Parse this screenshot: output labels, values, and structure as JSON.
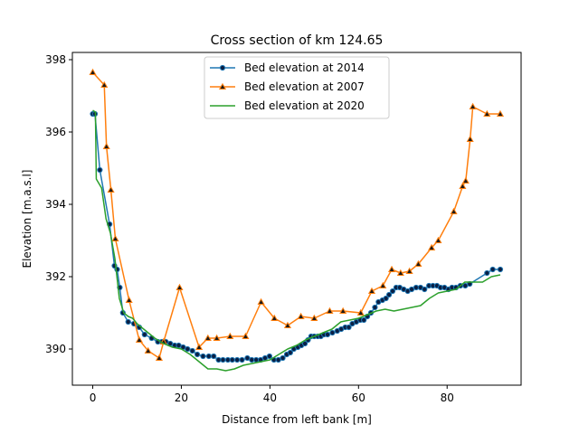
{
  "chart_data": {
    "type": "line",
    "title": "Cross section of km 124.65",
    "xlabel": "Distance from left bank [m]",
    "ylabel": "Elevation [m.a.s.l]",
    "xlim": [
      -4.6,
      96.7
    ],
    "ylim": [
      389.0,
      398.2
    ],
    "xticks": [
      0,
      20,
      40,
      60,
      80
    ],
    "yticks": [
      390,
      392,
      394,
      396,
      398
    ],
    "legend_position": "upper center",
    "grid": false,
    "series": [
      {
        "name": "Bed elevation at 2014",
        "color": "#1f77b4",
        "marker": "circle",
        "marker_face": "#0a1f44",
        "x": [
          0.0,
          0.5,
          1.6,
          3.8,
          4.9,
          5.5,
          6.1,
          6.8,
          8.0,
          9.3,
          10.5,
          11.7,
          13.3,
          14.7,
          15.6,
          16.5,
          17.5,
          18.5,
          19.4,
          20.4,
          21.4,
          22.5,
          23.6,
          24.9,
          26.2,
          27.3,
          28.4,
          29.4,
          30.5,
          31.5,
          32.6,
          33.7,
          34.9,
          35.9,
          36.9,
          37.9,
          38.9,
          39.9,
          40.9,
          41.9,
          42.9,
          43.8,
          44.6,
          45.4,
          46.3,
          47.1,
          47.9,
          48.6,
          49.3,
          50.0,
          50.8,
          51.5,
          52.2,
          53.0,
          54.1,
          55.2,
          56.1,
          57.0,
          57.8,
          58.6,
          59.5,
          60.4,
          61.2,
          62.0,
          62.8,
          63.7,
          64.5,
          65.4,
          66.2,
          66.9,
          67.7,
          68.5,
          69.3,
          70.2,
          71.1,
          72.0,
          73.0,
          74.0,
          74.9,
          75.9,
          76.8,
          77.7,
          78.5,
          79.4,
          80.3,
          81.1,
          82.0,
          83.0,
          84.1,
          85.1,
          89.0,
          90.3,
          92.0
        ],
        "y": [
          396.5,
          396.5,
          394.95,
          393.45,
          392.3,
          392.2,
          391.7,
          391.0,
          390.75,
          390.7,
          390.6,
          390.4,
          390.3,
          390.2,
          390.2,
          390.2,
          390.15,
          390.1,
          390.1,
          390.05,
          390.0,
          389.95,
          389.85,
          389.8,
          389.8,
          389.8,
          389.7,
          389.7,
          389.7,
          389.7,
          389.7,
          389.7,
          389.75,
          389.7,
          389.7,
          389.7,
          389.75,
          389.8,
          389.7,
          389.7,
          389.75,
          389.85,
          389.9,
          390.0,
          390.05,
          390.1,
          390.15,
          390.25,
          390.35,
          390.35,
          390.35,
          390.35,
          390.4,
          390.4,
          390.45,
          390.5,
          390.55,
          390.6,
          390.6,
          390.7,
          390.75,
          390.8,
          390.8,
          390.9,
          391.0,
          391.15,
          391.3,
          391.35,
          391.4,
          391.5,
          391.6,
          391.7,
          391.7,
          391.65,
          391.6,
          391.65,
          391.7,
          391.7,
          391.65,
          391.75,
          391.75,
          391.75,
          391.7,
          391.7,
          391.65,
          391.7,
          391.7,
          391.75,
          391.75,
          391.8,
          392.1,
          392.2,
          392.2
        ]
      },
      {
        "name": "Bed elevation at 2007",
        "color": "#ff7f0e",
        "marker": "triangle",
        "marker_face": "#1a1a1a",
        "x": [
          0.0,
          2.6,
          3.1,
          4.1,
          5.1,
          8.2,
          10.5,
          12.5,
          15.0,
          16.0,
          19.6,
          24.0,
          26.0,
          28.0,
          31.0,
          34.5,
          38.0,
          41.0,
          44.0,
          47.0,
          50.0,
          53.5,
          56.5,
          60.5,
          63.0,
          65.5,
          67.5,
          69.5,
          71.5,
          73.5,
          76.5,
          78.0,
          81.5,
          83.5,
          84.2,
          85.2,
          85.8,
          89.0,
          92.0
        ],
        "y": [
          397.65,
          397.3,
          395.6,
          394.4,
          393.05,
          391.35,
          390.25,
          389.95,
          389.75,
          390.2,
          391.7,
          390.05,
          390.3,
          390.3,
          390.35,
          390.35,
          391.3,
          390.85,
          390.65,
          390.9,
          390.85,
          391.05,
          391.05,
          391.0,
          391.6,
          391.75,
          392.2,
          392.1,
          392.15,
          392.35,
          392.8,
          393.0,
          393.8,
          394.5,
          394.65,
          395.8,
          396.7,
          396.5,
          396.5
        ]
      },
      {
        "name": "Bed elevation at 2020",
        "color": "#2ca02c",
        "marker": "none",
        "x": [
          0.0,
          0.6,
          0.8,
          2.0,
          3.0,
          4.0,
          5.0,
          6.0,
          7.0,
          8.0,
          9.0,
          10.0,
          11.0,
          12.0,
          13.0,
          14.0,
          16.0,
          18.0,
          20.0,
          22.0,
          24.0,
          26.0,
          28.0,
          30.0,
          32.0,
          34.0,
          36.0,
          38.0,
          40.0,
          42.0,
          44.0,
          46.0,
          48.0,
          50.0,
          52.0,
          54.0,
          56.0,
          58.0,
          60.0,
          62.0,
          64.0,
          66.0,
          68.0,
          70.0,
          72.0,
          74.0,
          76.0,
          78.0,
          80.0,
          82.0,
          84.0,
          86.0,
          88.0,
          90.0,
          92.0
        ],
        "y": [
          396.6,
          396.55,
          394.7,
          394.45,
          393.6,
          393.2,
          392.5,
          391.4,
          391.0,
          390.9,
          390.85,
          390.7,
          390.6,
          390.5,
          390.4,
          390.3,
          390.15,
          390.05,
          390.0,
          389.85,
          389.65,
          389.45,
          389.45,
          389.4,
          389.45,
          389.55,
          389.6,
          389.65,
          389.7,
          389.85,
          390.0,
          390.1,
          390.25,
          390.35,
          390.45,
          390.55,
          390.75,
          390.8,
          390.85,
          390.95,
          391.05,
          391.1,
          391.05,
          391.1,
          391.15,
          391.2,
          391.4,
          391.55,
          391.6,
          391.65,
          391.85,
          391.85,
          391.85,
          392.0,
          392.05
        ]
      }
    ]
  }
}
